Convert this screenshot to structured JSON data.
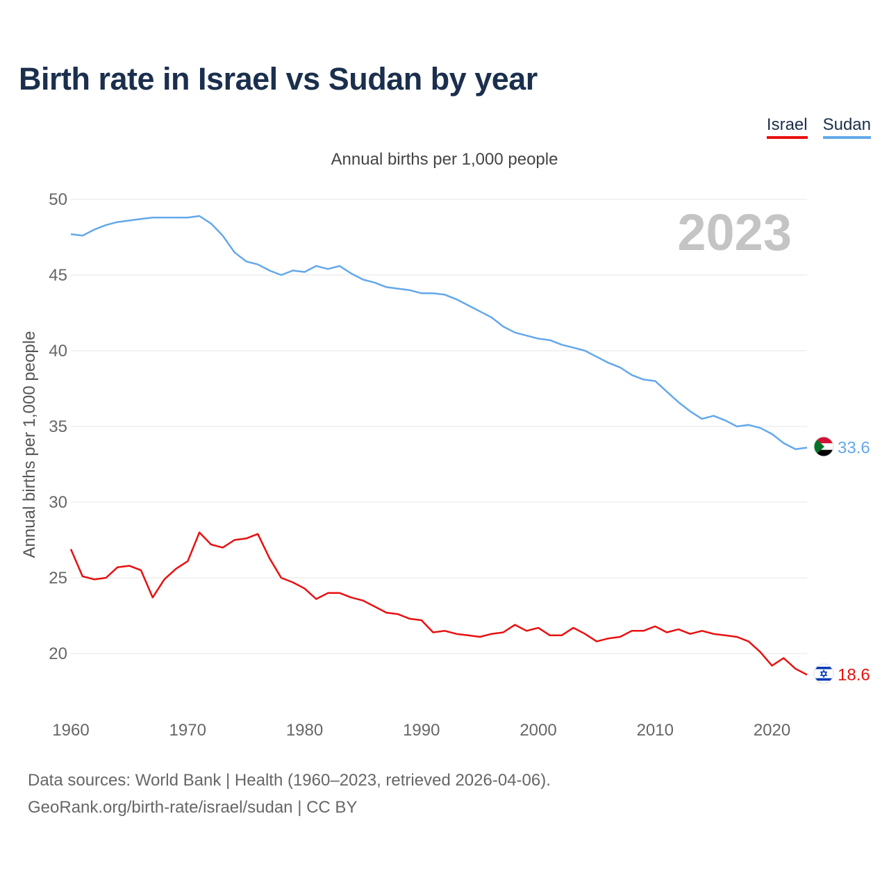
{
  "title": "Birth rate in Israel vs Sudan by year",
  "subtitle": "Annual births per 1,000 people",
  "legend": [
    {
      "label": "Israel",
      "color": "#e8100f"
    },
    {
      "label": "Sudan",
      "color": "#63a8ea"
    }
  ],
  "year_label": "2023",
  "footer": {
    "line1": "Data sources: World Bank | Health (1960–2023, retrieved 2026-04-06).",
    "line2": "GeoRank.org/birth-rate/israel/sudan | CC BY"
  },
  "chart_data": {
    "type": "line",
    "title": "Birth rate in Israel vs Sudan by year",
    "xlabel": "",
    "ylabel": "Annual births per 1,000 people",
    "xlim": [
      1960,
      2023
    ],
    "ylim": [
      16,
      50
    ],
    "yticks": [
      20,
      25,
      30,
      35,
      40,
      45,
      50
    ],
    "xticks": [
      1960,
      1970,
      1980,
      1990,
      2000,
      2010,
      2020
    ],
    "grid": true,
    "x": [
      1960,
      1961,
      1962,
      1963,
      1964,
      1965,
      1966,
      1967,
      1968,
      1969,
      1970,
      1971,
      1972,
      1973,
      1974,
      1975,
      1976,
      1977,
      1978,
      1979,
      1980,
      1981,
      1982,
      1983,
      1984,
      1985,
      1986,
      1987,
      1988,
      1989,
      1990,
      1991,
      1992,
      1993,
      1994,
      1995,
      1996,
      1997,
      1998,
      1999,
      2000,
      2001,
      2002,
      2003,
      2004,
      2005,
      2006,
      2007,
      2008,
      2009,
      2010,
      2011,
      2012,
      2013,
      2014,
      2015,
      2016,
      2017,
      2018,
      2019,
      2020,
      2021,
      2022,
      2023
    ],
    "series": [
      {
        "name": "Sudan",
        "color": "#63a8ea",
        "end_label": "33.6",
        "values": [
          47.7,
          47.6,
          48.0,
          48.3,
          48.5,
          48.6,
          48.7,
          48.8,
          48.8,
          48.8,
          48.8,
          48.9,
          48.4,
          47.6,
          46.5,
          45.9,
          45.7,
          45.3,
          45.0,
          45.3,
          45.2,
          45.6,
          45.4,
          45.6,
          45.1,
          44.7,
          44.5,
          44.2,
          44.1,
          44.0,
          43.8,
          43.8,
          43.7,
          43.4,
          43.0,
          42.6,
          42.2,
          41.6,
          41.2,
          41.0,
          40.8,
          40.7,
          40.4,
          40.2,
          40.0,
          39.6,
          39.2,
          38.9,
          38.4,
          38.1,
          38.0,
          37.3,
          36.6,
          36.0,
          35.5,
          35.7,
          35.4,
          35.0,
          35.1,
          34.9,
          34.5,
          33.9,
          33.5,
          33.6
        ]
      },
      {
        "name": "Israel",
        "color": "#e8100f",
        "end_label": "18.6",
        "values": [
          26.9,
          25.1,
          24.9,
          25.0,
          25.7,
          25.8,
          25.5,
          23.7,
          24.9,
          25.6,
          26.1,
          28.0,
          27.2,
          27.0,
          27.5,
          27.6,
          27.9,
          26.3,
          25.0,
          24.7,
          24.3,
          23.6,
          24.0,
          24.0,
          23.7,
          23.5,
          23.1,
          22.7,
          22.6,
          22.3,
          22.2,
          21.4,
          21.5,
          21.3,
          21.2,
          21.1,
          21.3,
          21.4,
          21.9,
          21.5,
          21.7,
          21.2,
          21.2,
          21.7,
          21.3,
          20.8,
          21.0,
          21.1,
          21.5,
          21.5,
          21.8,
          21.4,
          21.6,
          21.3,
          21.5,
          21.3,
          21.2,
          21.1,
          20.8,
          20.1,
          19.2,
          19.7,
          19.0,
          18.6
        ]
      }
    ]
  }
}
